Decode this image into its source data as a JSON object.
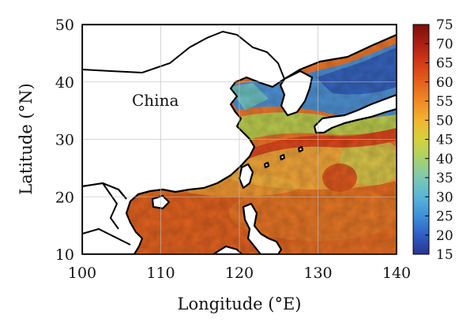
{
  "map": {
    "region_label": "China",
    "x_axis": {
      "title": "Longitude (°E)",
      "range": [
        100,
        140
      ],
      "ticks": [
        100,
        110,
        120,
        130,
        140
      ]
    },
    "y_axis": {
      "title": "Latitude (°N)",
      "range": [
        10,
        50
      ],
      "ticks": [
        10,
        20,
        30,
        40,
        50
      ]
    },
    "colorbar": {
      "range": [
        15,
        75
      ],
      "ticks": [
        15,
        20,
        25,
        30,
        35,
        40,
        45,
        50,
        55,
        60,
        65,
        70,
        75
      ],
      "colors": [
        "#283593",
        "#2f5ec4",
        "#3f8fd8",
        "#5ab5d8",
        "#7cc9b0",
        "#a8d26a",
        "#d6d13c",
        "#f2b52e",
        "#f08a24",
        "#e5601d",
        "#d33a17",
        "#ad1f12",
        "#7a0f0a"
      ]
    },
    "land_color": "#ffffff",
    "coastline_color": "#000000"
  }
}
